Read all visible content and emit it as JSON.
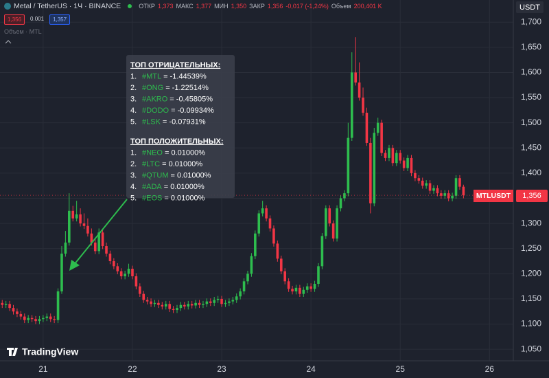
{
  "header": {
    "symbol": "Metal / TetherUS · 1Ч · BINANCE",
    "open_label": "ОТКР",
    "open": "1,373",
    "high_label": "МАКС",
    "high": "1,377",
    "low_label": "МИН",
    "low": "1,350",
    "close_label": "ЗАКР",
    "close": "1,356",
    "change": "-0,017 (-1,24%)",
    "volume_label": "Объем",
    "volume": "200,401 K",
    "bid": "1,356",
    "spread": "0.001",
    "ask": "1,357",
    "indicator": "Объем · MTL",
    "currency": "USDT",
    "price_tag": {
      "symbol": "MTLUSDT",
      "price": "1,356"
    },
    "logo": "TradingView"
  },
  "annotation": {
    "negative": {
      "title": "ТОП ОТРИЦАТЕЛЬНЫХ:",
      "items": [
        {
          "num": "1.",
          "tag": "#MTL",
          "text": "= -1.44539%"
        },
        {
          "num": "2.",
          "tag": "#ONG",
          "text": "= -1.22514%"
        },
        {
          "num": "3.",
          "tag": "#AKRO",
          "text": "= -0.45805%"
        },
        {
          "num": "4.",
          "tag": "#DODO",
          "text": "= -0.09934%"
        },
        {
          "num": "5.",
          "tag": "#LSK",
          "text": "= -0.07931%"
        }
      ]
    },
    "positive": {
      "title": "ТОП ПОЛОЖИТЕЛЬНЫХ:",
      "items": [
        {
          "num": "1.",
          "tag": "#NEO",
          "text": "= 0.01000%"
        },
        {
          "num": "2.",
          "tag": "#LTC",
          "text": "= 0.01000%"
        },
        {
          "num": "3.",
          "tag": "#QTUM",
          "text": "= 0.01000%"
        },
        {
          "num": "4.",
          "tag": "#ADA",
          "text": "= 0.01000%"
        },
        {
          "num": "5.",
          "tag": "#EOS",
          "text": "= 0.01000%"
        }
      ]
    }
  },
  "chart_data": {
    "type": "candlestick",
    "up_color": "#2ebd4e",
    "down_color": "#f23645",
    "grid": true,
    "xlim": [
      -11.6,
      126.4
    ],
    "xticks": [
      {
        "value": 0,
        "label": "21"
      },
      {
        "value": 24,
        "label": "22"
      },
      {
        "value": 48,
        "label": "23"
      },
      {
        "value": 72,
        "label": "24"
      },
      {
        "value": 96,
        "label": "25"
      },
      {
        "value": 120,
        "label": "26"
      }
    ],
    "ylim": [
      1.027,
      1.744
    ],
    "yticks": [
      {
        "value": 1.05,
        "label": "1,050"
      },
      {
        "value": 1.1,
        "label": "1,100"
      },
      {
        "value": 1.15,
        "label": "1,150"
      },
      {
        "value": 1.2,
        "label": "1,200"
      },
      {
        "value": 1.25,
        "label": "1,250"
      },
      {
        "value": 1.3,
        "label": "1,300"
      },
      {
        "value": 1.35,
        "label": "1,350"
      },
      {
        "value": 1.4,
        "label": "1,400"
      },
      {
        "value": 1.45,
        "label": "1,450"
      },
      {
        "value": 1.5,
        "label": "1,500"
      },
      {
        "value": 1.55,
        "label": "1,550"
      },
      {
        "value": 1.6,
        "label": "1,600"
      },
      {
        "value": 1.65,
        "label": "1,650"
      },
      {
        "value": 1.7,
        "label": "1,700"
      }
    ],
    "x": [
      -12,
      -11,
      -10,
      -9,
      -8,
      -7,
      -6,
      -5,
      -4,
      -3,
      -2,
      -1,
      0,
      1,
      2,
      3,
      4,
      5,
      6,
      7,
      8,
      9,
      10,
      11,
      12,
      13,
      14,
      15,
      16,
      17,
      18,
      19,
      20,
      21,
      22,
      23,
      24,
      25,
      26,
      27,
      28,
      29,
      30,
      31,
      32,
      33,
      34,
      35,
      36,
      37,
      38,
      39,
      40,
      41,
      42,
      43,
      44,
      45,
      46,
      47,
      48,
      49,
      50,
      51,
      52,
      53,
      54,
      55,
      56,
      57,
      58,
      59,
      60,
      61,
      62,
      63,
      64,
      65,
      66,
      67,
      68,
      69,
      70,
      71,
      72,
      73,
      74,
      75,
      76,
      77,
      78,
      79,
      80,
      81,
      82,
      83,
      84,
      85,
      86,
      87,
      88,
      89,
      90,
      91,
      92,
      93,
      94,
      95,
      96,
      97,
      98,
      99,
      100,
      101,
      102,
      103,
      104,
      105,
      106,
      107,
      108,
      109,
      110,
      111,
      112,
      113
    ],
    "open": [
      1.145,
      1.142,
      1.138,
      1.14,
      1.132,
      1.125,
      1.12,
      1.115,
      1.108,
      1.112,
      1.11,
      1.106,
      1.11,
      1.112,
      1.115,
      1.11,
      1.108,
      1.165,
      1.24,
      1.262,
      1.325,
      1.31,
      1.318,
      1.3,
      1.295,
      1.28,
      1.262,
      1.245,
      1.282,
      1.255,
      1.24,
      1.225,
      1.215,
      1.205,
      1.195,
      1.2,
      1.21,
      1.195,
      1.175,
      1.16,
      1.148,
      1.145,
      1.14,
      1.142,
      1.138,
      1.135,
      1.14,
      1.13,
      1.128,
      1.132,
      1.138,
      1.135,
      1.14,
      1.137,
      1.142,
      1.138,
      1.14,
      1.145,
      1.142,
      1.148,
      1.15,
      1.14,
      1.142,
      1.145,
      1.148,
      1.155,
      1.165,
      1.185,
      1.2,
      1.235,
      1.28,
      1.32,
      1.33,
      1.31,
      1.29,
      1.26,
      1.23,
      1.205,
      1.185,
      1.17,
      1.165,
      1.172,
      1.16,
      1.168,
      1.175,
      1.17,
      1.18,
      1.215,
      1.275,
      1.33,
      1.3,
      1.27,
      1.33,
      1.35,
      1.36,
      1.47,
      1.6,
      1.58,
      1.55,
      1.52,
      1.46,
      1.34,
      1.48,
      1.5,
      1.44,
      1.43,
      1.45,
      1.42,
      1.44,
      1.425,
      1.41,
      1.43,
      1.4,
      1.39,
      1.385,
      1.375,
      1.38,
      1.365,
      1.37,
      1.36,
      1.355,
      1.36,
      1.35,
      1.355,
      1.39,
      1.373
    ],
    "high": [
      1.151,
      1.148,
      1.146,
      1.146,
      1.138,
      1.131,
      1.126,
      1.121,
      1.118,
      1.118,
      1.116,
      1.116,
      1.118,
      1.121,
      1.121,
      1.116,
      1.171,
      1.255,
      1.285,
      1.36,
      1.335,
      1.345,
      1.33,
      1.32,
      1.31,
      1.29,
      1.27,
      1.29,
      1.288,
      1.262,
      1.246,
      1.231,
      1.221,
      1.211,
      1.206,
      1.22,
      1.216,
      1.201,
      1.181,
      1.166,
      1.154,
      1.151,
      1.148,
      1.148,
      1.144,
      1.146,
      1.146,
      1.136,
      1.138,
      1.144,
      1.144,
      1.146,
      1.146,
      1.148,
      1.148,
      1.146,
      1.151,
      1.151,
      1.154,
      1.156,
      1.156,
      1.148,
      1.151,
      1.154,
      1.161,
      1.171,
      1.191,
      1.206,
      1.241,
      1.286,
      1.326,
      1.345,
      1.336,
      1.316,
      1.296,
      1.266,
      1.236,
      1.211,
      1.191,
      1.176,
      1.178,
      1.178,
      1.174,
      1.181,
      1.181,
      1.186,
      1.221,
      1.281,
      1.336,
      1.336,
      1.306,
      1.336,
      1.356,
      1.366,
      1.5,
      1.64,
      1.67,
      1.62,
      1.57,
      1.53,
      1.47,
      1.49,
      1.51,
      1.506,
      1.446,
      1.456,
      1.456,
      1.446,
      1.446,
      1.431,
      1.436,
      1.436,
      1.406,
      1.396,
      1.391,
      1.386,
      1.386,
      1.376,
      1.376,
      1.366,
      1.366,
      1.366,
      1.361,
      1.396,
      1.396,
      1.377
    ],
    "low": [
      1.136,
      1.132,
      1.132,
      1.126,
      1.119,
      1.114,
      1.109,
      1.102,
      1.102,
      1.104,
      1.1,
      1.1,
      1.104,
      1.106,
      1.104,
      1.102,
      1.102,
      1.16,
      1.234,
      1.256,
      1.304,
      1.304,
      1.294,
      1.289,
      1.274,
      1.256,
      1.239,
      1.239,
      1.249,
      1.234,
      1.219,
      1.209,
      1.199,
      1.189,
      1.189,
      1.194,
      1.189,
      1.169,
      1.154,
      1.142,
      1.139,
      1.134,
      1.134,
      1.132,
      1.129,
      1.129,
      1.124,
      1.122,
      1.122,
      1.126,
      1.129,
      1.129,
      1.131,
      1.131,
      1.132,
      1.132,
      1.134,
      1.136,
      1.136,
      1.142,
      1.134,
      1.134,
      1.136,
      1.139,
      1.142,
      1.149,
      1.159,
      1.179,
      1.194,
      1.229,
      1.274,
      1.314,
      1.304,
      1.284,
      1.254,
      1.224,
      1.199,
      1.179,
      1.164,
      1.159,
      1.159,
      1.154,
      1.154,
      1.162,
      1.164,
      1.164,
      1.174,
      1.209,
      1.269,
      1.294,
      1.264,
      1.264,
      1.324,
      1.344,
      1.354,
      1.464,
      1.574,
      1.544,
      1.514,
      1.454,
      1.32,
      1.334,
      1.474,
      1.434,
      1.424,
      1.424,
      1.414,
      1.414,
      1.419,
      1.404,
      1.404,
      1.394,
      1.384,
      1.379,
      1.369,
      1.369,
      1.359,
      1.359,
      1.354,
      1.349,
      1.349,
      1.344,
      1.344,
      1.349,
      1.367,
      1.35
    ],
    "close": [
      1.142,
      1.138,
      1.14,
      1.132,
      1.125,
      1.12,
      1.115,
      1.108,
      1.112,
      1.11,
      1.106,
      1.11,
      1.112,
      1.115,
      1.11,
      1.108,
      1.165,
      1.24,
      1.262,
      1.325,
      1.31,
      1.318,
      1.3,
      1.295,
      1.28,
      1.262,
      1.245,
      1.282,
      1.255,
      1.24,
      1.225,
      1.215,
      1.205,
      1.195,
      1.2,
      1.21,
      1.195,
      1.175,
      1.16,
      1.148,
      1.145,
      1.14,
      1.142,
      1.138,
      1.135,
      1.14,
      1.13,
      1.128,
      1.132,
      1.138,
      1.135,
      1.14,
      1.137,
      1.142,
      1.138,
      1.14,
      1.145,
      1.142,
      1.148,
      1.15,
      1.14,
      1.142,
      1.145,
      1.148,
      1.155,
      1.165,
      1.185,
      1.2,
      1.235,
      1.28,
      1.32,
      1.33,
      1.31,
      1.29,
      1.26,
      1.23,
      1.205,
      1.185,
      1.17,
      1.165,
      1.172,
      1.16,
      1.168,
      1.175,
      1.17,
      1.18,
      1.215,
      1.275,
      1.33,
      1.3,
      1.27,
      1.33,
      1.35,
      1.36,
      1.47,
      1.6,
      1.58,
      1.55,
      1.52,
      1.46,
      1.34,
      1.48,
      1.5,
      1.44,
      1.43,
      1.45,
      1.42,
      1.44,
      1.425,
      1.41,
      1.43,
      1.4,
      1.39,
      1.385,
      1.375,
      1.38,
      1.365,
      1.37,
      1.36,
      1.355,
      1.36,
      1.35,
      1.355,
      1.39,
      1.373,
      1.356
    ]
  }
}
